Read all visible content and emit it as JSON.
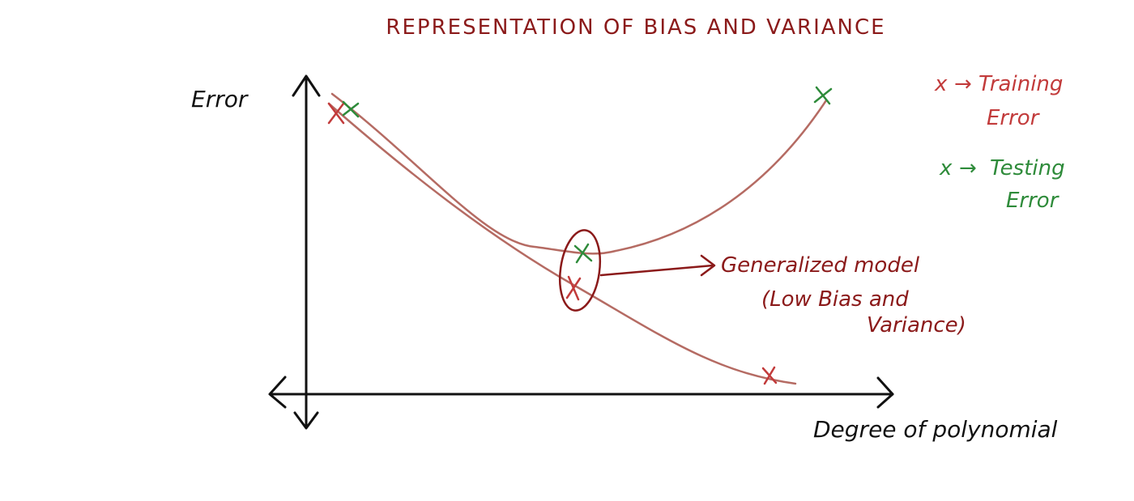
{
  "diagram": {
    "title": "REPRESENTATION OF BIAS AND VARIANCE",
    "y_axis_label": "Error",
    "x_axis_label": "Degree of polynomial",
    "legend": {
      "training": {
        "marker": "x",
        "arrow": "→",
        "label_line1": "Training",
        "label_line2": "Error"
      },
      "testing": {
        "marker": "x",
        "arrow": "→",
        "label_line1": "Testing",
        "label_line2": "Error"
      }
    },
    "annotation": {
      "line1": "Generalized model",
      "line2": "(Low Bias and",
      "line3": "Variance)"
    },
    "colors": {
      "axis": "#111111",
      "curve": "#b56b63",
      "training_marker": "#c23b3b",
      "testing_marker": "#2e8b3a",
      "title": "#8b1a1a",
      "annotation": "#8b1a1a"
    }
  }
}
